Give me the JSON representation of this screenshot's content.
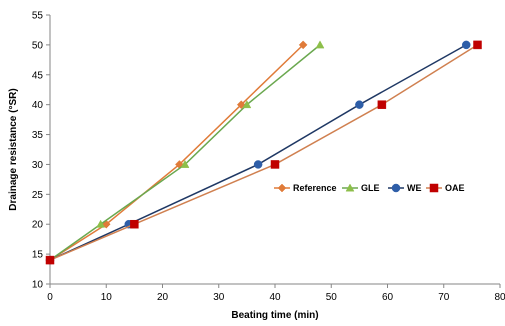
{
  "chart_data": {
    "type": "line",
    "xlabel": "Beating time (min)",
    "ylabel": "Drainage resistance (°SR)",
    "xlim": [
      0,
      80
    ],
    "ylim": [
      10,
      55
    ],
    "xticks": [
      "0",
      "10",
      "20",
      "30",
      "40",
      "50",
      "60",
      "70",
      "80"
    ],
    "yticks": [
      "10",
      "15",
      "20",
      "25",
      "30",
      "35",
      "40",
      "45",
      "50",
      "55"
    ],
    "grid": false,
    "legend_position": "center-right",
    "series": [
      {
        "name": "Reference",
        "color": "#e07b39",
        "line_color": "#e07b39",
        "marker": "diamond",
        "points": [
          [
            0,
            14
          ],
          [
            10,
            20
          ],
          [
            23,
            30
          ],
          [
            34,
            40
          ],
          [
            45,
            50
          ]
        ]
      },
      {
        "name": "GLE",
        "color": "#8dbf4a",
        "line_color": "#6aa84f",
        "marker": "triangle",
        "points": [
          [
            0,
            14
          ],
          [
            9,
            20
          ],
          [
            24,
            30
          ],
          [
            35,
            40
          ],
          [
            48,
            50
          ]
        ]
      },
      {
        "name": "WE",
        "color": "#2e5ea8",
        "line_color": "#1f3864",
        "marker": "circle",
        "points": [
          [
            0,
            14
          ],
          [
            14,
            20
          ],
          [
            37,
            30
          ],
          [
            55,
            40
          ],
          [
            74,
            50
          ]
        ]
      },
      {
        "name": "OAE",
        "color": "#c00000",
        "line_color": "#d08050",
        "marker": "square",
        "points": [
          [
            0,
            14
          ],
          [
            15,
            20
          ],
          [
            40,
            30
          ],
          [
            59,
            40
          ],
          [
            76,
            50
          ]
        ]
      }
    ]
  }
}
